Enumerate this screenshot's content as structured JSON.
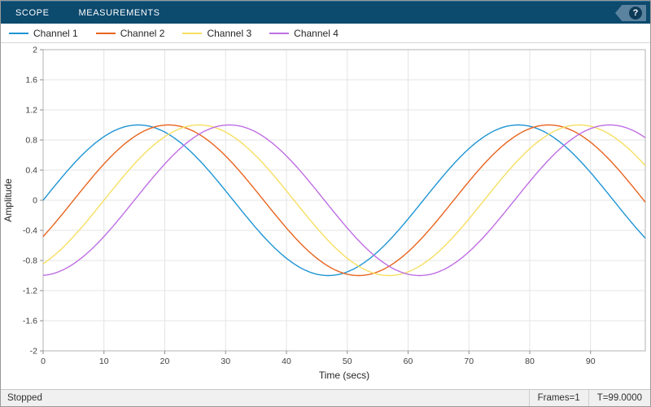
{
  "toolbar": {
    "tabs": [
      {
        "label": "SCOPE"
      },
      {
        "label": "MEASUREMENTS"
      }
    ],
    "help_label": "?"
  },
  "legend": {
    "items": [
      {
        "label": "Channel 1",
        "color": "#1f95d4"
      },
      {
        "label": "Channel 2",
        "color": "#e8641f"
      },
      {
        "label": "Channel 3",
        "color": "#f6df62"
      },
      {
        "label": "Channel 4",
        "color": "#bf6fe3"
      }
    ]
  },
  "chart_data": {
    "type": "line",
    "title": "",
    "xlabel": "Time (secs)",
    "ylabel": "Amplitude",
    "xlim": [
      0,
      99
    ],
    "ylim": [
      -2,
      2
    ],
    "grid": true,
    "xticks": [
      0,
      10,
      20,
      30,
      40,
      50,
      60,
      70,
      80,
      90
    ],
    "xtick_labels": [
      "0",
      "10",
      "20",
      "30",
      "40",
      "50",
      "60",
      "70",
      "80",
      "90"
    ],
    "yticks": [
      -2,
      -1.6,
      -1.2,
      -0.8,
      -0.4,
      0,
      0.4,
      0.8,
      1.2,
      1.6,
      2
    ],
    "ytick_labels": [
      "-2",
      "-1.6",
      "-1.2",
      "-0.8",
      "-0.4",
      "0",
      "0.4",
      "0.8",
      "1.2",
      "1.6",
      "2"
    ],
    "series": [
      {
        "name": "Channel 1",
        "color": "#1f95d4",
        "waveform": "sine",
        "amplitude": 1,
        "period_secs": 62.5,
        "delay_secs": 0
      },
      {
        "name": "Channel 2",
        "color": "#e8641f",
        "waveform": "sine",
        "amplitude": 1,
        "period_secs": 62.5,
        "delay_secs": 5
      },
      {
        "name": "Channel 3",
        "color": "#f6df62",
        "waveform": "sine",
        "amplitude": 1,
        "period_secs": 62.5,
        "delay_secs": 10
      },
      {
        "name": "Channel 4",
        "color": "#bf6fe3",
        "waveform": "sine",
        "amplitude": 1,
        "period_secs": 62.5,
        "delay_secs": 15
      }
    ],
    "legend_position": "top-left",
    "sample_step": 0.25
  },
  "status_bar": {
    "state": "Stopped",
    "frames": "Frames=1",
    "time": "T=99.0000"
  }
}
